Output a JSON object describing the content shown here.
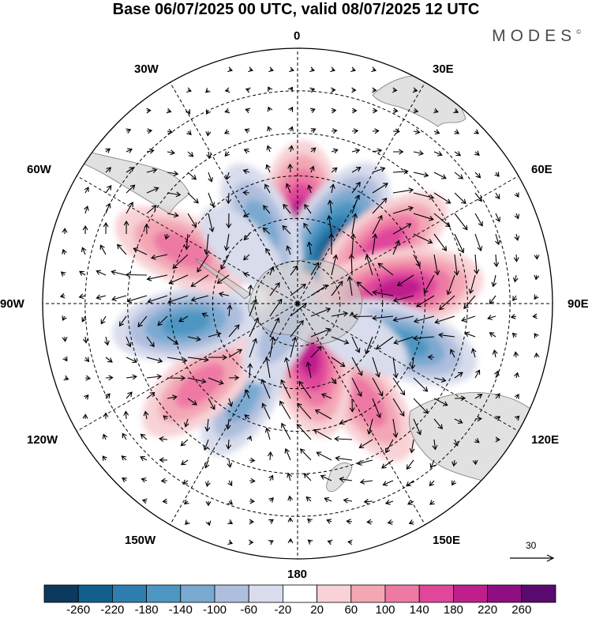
{
  "title": "Base 06/07/2025 00 UTC, valid 08/07/2025 12 UTC",
  "brand": {
    "text": "MODES",
    "mark": "©"
  },
  "longitude_labels": {
    "lon_0": "0",
    "lon_30e": "30E",
    "lon_60e": "60E",
    "lon_90e": "90E",
    "lon_120e": "120E",
    "lon_150e": "150E",
    "lon_180": "180",
    "lon_150w": "150W",
    "lon_120w": "120W",
    "lon_90w": "90W",
    "lon_60w": "60W",
    "lon_30w": "30W"
  },
  "reference_vector": {
    "label": "30"
  },
  "colorbar": {
    "ticks": [
      "-260",
      "-220",
      "-180",
      "-140",
      "-100",
      "-60",
      "-20",
      "20",
      "60",
      "100",
      "140",
      "180",
      "220",
      "260"
    ],
    "colors": [
      "#0b3a5e",
      "#135f8c",
      "#2e7fb0",
      "#4d96c2",
      "#7aa9d0",
      "#aebedd",
      "#d8dcec",
      "#ffffff",
      "#f8d2d6",
      "#f3a7b5",
      "#ee79a4",
      "#e0479b",
      "#bf1f8d",
      "#8f0f82",
      "#5a0a6e"
    ]
  },
  "anomaly_centers": [
    {
      "lon": 2,
      "colat": 25,
      "value": 220
    },
    {
      "lon": 30,
      "colat": 23,
      "value": -230
    },
    {
      "lon": 55,
      "colat": 37,
      "value": 140
    },
    {
      "lon": 82,
      "colat": 36,
      "value": 190
    },
    {
      "lon": 110,
      "colat": 40,
      "value": -150
    },
    {
      "lon": 145,
      "colat": 42,
      "value": 120
    },
    {
      "lon": 168,
      "colat": 18,
      "value": 190
    },
    {
      "lon": -150,
      "colat": 38,
      "value": -100
    },
    {
      "lon": -130,
      "colat": 45,
      "value": 120
    },
    {
      "lon": -100,
      "colat": 40,
      "value": -140
    },
    {
      "lon": -65,
      "colat": 45,
      "value": 130
    },
    {
      "lon": -25,
      "colat": 30,
      "value": -110
    },
    {
      "lon": -45,
      "colat": 28,
      "value": -40
    },
    {
      "lon": 120,
      "colat": 25,
      "value": -50
    },
    {
      "lon": -150,
      "colat": 12,
      "value": -60
    }
  ]
}
